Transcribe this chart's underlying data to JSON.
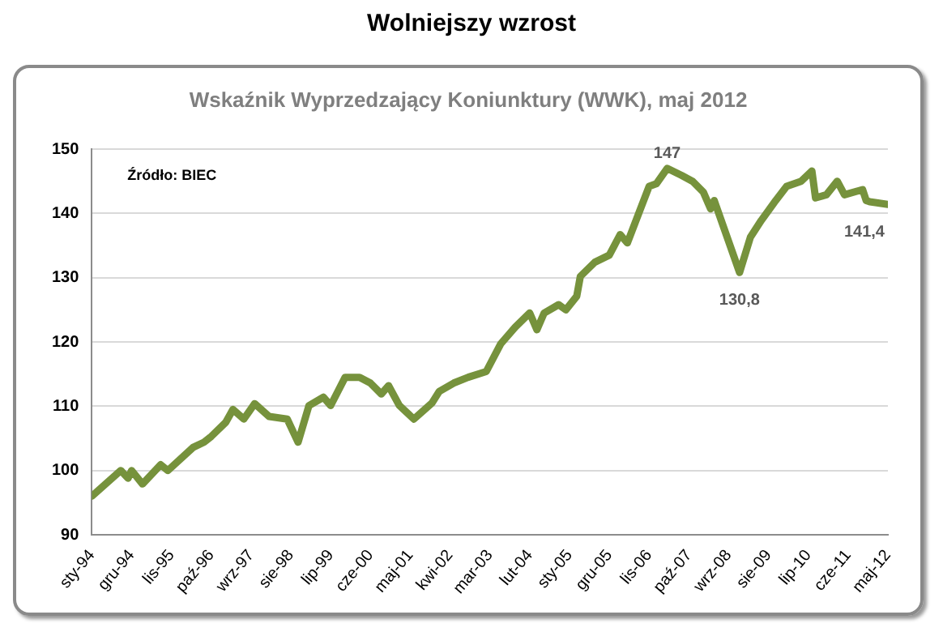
{
  "chart_data": {
    "type": "line",
    "title": "Wolniejszy wzrost",
    "subtitle": "Wskaźnik Wyprzedzający Koniunktury (WWK), maj 2012",
    "x": [
      "1994-01",
      "1994-09",
      "1994-11",
      "1994-12",
      "1995-03",
      "1995-08",
      "1995-10",
      "1996-05",
      "1996-08",
      "1996-10",
      "1997-02",
      "1997-04",
      "1997-07",
      "1997-10",
      "1998-02",
      "1998-07",
      "1998-10",
      "1999-01",
      "1999-05",
      "1999-07",
      "1999-11",
      "2000-03",
      "2000-06",
      "2000-09",
      "2000-11",
      "2001-02",
      "2001-06",
      "2001-11",
      "2002-01",
      "2002-05",
      "2002-09",
      "2003-02",
      "2003-06",
      "2003-10",
      "2004-02",
      "2004-04",
      "2004-06",
      "2004-10",
      "2004-12",
      "2005-03",
      "2005-04",
      "2005-08",
      "2005-12",
      "2006-03",
      "2006-05",
      "2006-11",
      "2007-01",
      "2007-04",
      "2007-08",
      "2007-11",
      "2008-02",
      "2008-04",
      "2008-05",
      "2008-12",
      "2009-03",
      "2009-06",
      "2009-10",
      "2010-01",
      "2010-05",
      "2010-08",
      "2010-09",
      "2010-12",
      "2011-03",
      "2011-05",
      "2011-10",
      "2011-11",
      "2011-12",
      "2012-05"
    ],
    "series": [
      {
        "color": "#76923c",
        "values": [
          96,
          100,
          98.8,
          100,
          97.9,
          100.9,
          100,
          103.6,
          104.4,
          105.3,
          107.5,
          109.5,
          108,
          110.4,
          108.4,
          108,
          104.4,
          110.1,
          111.4,
          110.1,
          114.5,
          114.5,
          113.6,
          111.9,
          113.2,
          110.1,
          108,
          110.5,
          112.3,
          113.6,
          114.5,
          115.4,
          119.7,
          122.3,
          124.5,
          121.9,
          124.5,
          125.8,
          125,
          127.1,
          130.2,
          132.4,
          133.5,
          136.7,
          135.4,
          144.2,
          144.6,
          147,
          145.9,
          145,
          143.3,
          140.7,
          142,
          130.8,
          136.3,
          138.9,
          142,
          144.2,
          145,
          146.6,
          142.4,
          142.9,
          145,
          142.9,
          143.7,
          142,
          141.8,
          141.4
        ]
      }
    ],
    "xlim": [
      "1994-01",
      "2012-05"
    ],
    "xticks": [
      {
        "value": "1994-01",
        "label": "sty-94"
      },
      {
        "value": "1994-12",
        "label": "gru-94"
      },
      {
        "value": "1995-11",
        "label": "lis-95"
      },
      {
        "value": "1996-10",
        "label": "paź-96"
      },
      {
        "value": "1997-09",
        "label": "wrz-97"
      },
      {
        "value": "1998-08",
        "label": "sie-98"
      },
      {
        "value": "1999-07",
        "label": "lip-99"
      },
      {
        "value": "2000-06",
        "label": "cze-00"
      },
      {
        "value": "2001-05",
        "label": "maj-01"
      },
      {
        "value": "2002-04",
        "label": "kwi-02"
      },
      {
        "value": "2003-03",
        "label": "mar-03"
      },
      {
        "value": "2004-02",
        "label": "lut-04"
      },
      {
        "value": "2005-01",
        "label": "sty-05"
      },
      {
        "value": "2005-12",
        "label": "gru-05"
      },
      {
        "value": "2006-11",
        "label": "lis-06"
      },
      {
        "value": "2007-10",
        "label": "paź-07"
      },
      {
        "value": "2008-09",
        "label": "wrz-08"
      },
      {
        "value": "2009-08",
        "label": "sie-09"
      },
      {
        "value": "2010-07",
        "label": "lip-10"
      },
      {
        "value": "2011-06",
        "label": "cze-11"
      },
      {
        "value": "2012-05",
        "label": "maj-12"
      }
    ],
    "ylim": [
      90,
      150
    ],
    "yticks": [
      90,
      100,
      110,
      120,
      130,
      140,
      150
    ],
    "grid": "y",
    "marker": "none",
    "line_style": "solid",
    "annotations": [
      "Źródło: BIEC",
      {
        "text": "147",
        "x": "2007-04",
        "y": 147
      },
      {
        "text": "130,8",
        "x": "2008-12",
        "y": 130.8
      },
      {
        "text": "141,4",
        "x": "2012-05",
        "y": 141.4
      }
    ]
  }
}
